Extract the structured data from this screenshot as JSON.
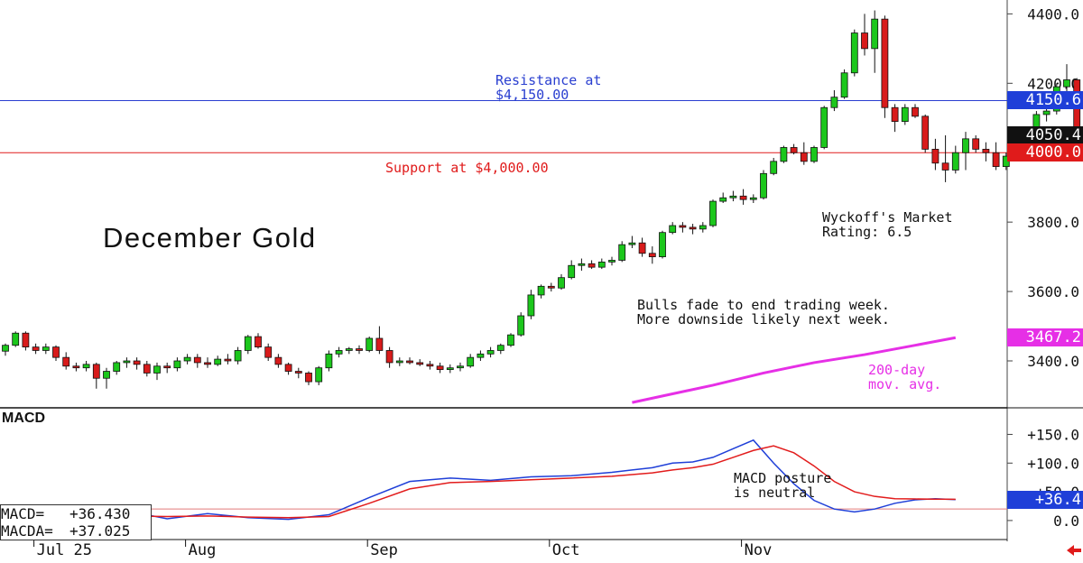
{
  "chart_data": [
    {
      "type": "candlestick",
      "title": "December Gold",
      "ylim": [
        3270,
        4440
      ],
      "y_ticks": [
        "4400.0",
        "4200.0",
        "3800.0",
        "3600.0",
        "3400.0"
      ],
      "y_tick_values": [
        4400,
        4200,
        3800,
        3600,
        3400
      ],
      "x_labels": [
        "Jul 25",
        "Aug",
        "Sep",
        "Oct",
        "Nov"
      ],
      "x_label_days": [
        3,
        18,
        36,
        54,
        73
      ],
      "price_tags": [
        {
          "label": "4150.6",
          "value": 4150.6,
          "color": "#1f3fd8"
        },
        {
          "label": "4050.4",
          "value": 4050.4,
          "color": "#111111"
        },
        {
          "label": "4000.0",
          "value": 4000.0,
          "color": "#e01b1b"
        },
        {
          "label": "3467.2",
          "value": 3467.2,
          "color": "#e62fe6"
        }
      ],
      "hlines": [
        {
          "value": 4150,
          "color": "#2a3fd0",
          "label_lines": [
            "Resistance at",
            "$4,150.00"
          ]
        },
        {
          "value": 4000,
          "color": "#e01b1b",
          "label_lines": [
            "Support at $4,000.00"
          ]
        }
      ],
      "annotations": {
        "wyckoff_lines": [
          "Wyckoff's Market",
          "Rating: 6.5"
        ],
        "comment_lines": [
          "Bulls fade to end trading week.",
          "More downside likely next week."
        ],
        "ma_label_lines": [
          "200-day",
          "mov. avg."
        ]
      },
      "series": [
        {
          "name": "200-day mov. avg.",
          "kind": "line",
          "color": "#e62fe6",
          "x": [
            62,
            70,
            75,
            80,
            85,
            90,
            94
          ],
          "y": [
            3280,
            3330,
            3365,
            3395,
            3418,
            3445,
            3467
          ]
        },
        {
          "name": "",
          "kind": "ohlc",
          "up_color": "#1cc71c",
          "down_color": "#d81b1b",
          "data": [
            [
              3428,
              3450,
              3415,
              3445
            ],
            [
              3445,
              3485,
              3440,
              3480
            ],
            [
              3480,
              3485,
              3430,
              3440
            ],
            [
              3440,
              3450,
              3420,
              3430
            ],
            [
              3430,
              3450,
              3420,
              3440
            ],
            [
              3440,
              3445,
              3400,
              3410
            ],
            [
              3410,
              3425,
              3375,
              3385
            ],
            [
              3385,
              3395,
              3370,
              3380
            ],
            [
              3380,
              3400,
              3370,
              3390
            ],
            [
              3390,
              3395,
              3320,
              3350
            ],
            [
              3350,
              3380,
              3320,
              3370
            ],
            [
              3370,
              3400,
              3360,
              3395
            ],
            [
              3395,
              3410,
              3380,
              3400
            ],
            [
              3400,
              3410,
              3375,
              3390
            ],
            [
              3390,
              3400,
              3355,
              3365
            ],
            [
              3365,
              3395,
              3345,
              3385
            ],
            [
              3385,
              3395,
              3365,
              3380
            ],
            [
              3380,
              3410,
              3370,
              3400
            ],
            [
              3400,
              3420,
              3390,
              3410
            ],
            [
              3410,
              3420,
              3380,
              3395
            ],
            [
              3395,
              3410,
              3380,
              3390
            ],
            [
              3390,
              3415,
              3385,
              3405
            ],
            [
              3405,
              3420,
              3390,
              3400
            ],
            [
              3400,
              3440,
              3390,
              3430
            ],
            [
              3430,
              3475,
              3420,
              3470
            ],
            [
              3470,
              3480,
              3435,
              3440
            ],
            [
              3440,
              3450,
              3400,
              3410
            ],
            [
              3410,
              3420,
              3380,
              3390
            ],
            [
              3390,
              3395,
              3360,
              3370
            ],
            [
              3370,
              3380,
              3350,
              3365
            ],
            [
              3365,
              3370,
              3330,
              3340
            ],
            [
              3340,
              3385,
              3330,
              3380
            ],
            [
              3380,
              3430,
              3370,
              3420
            ],
            [
              3420,
              3440,
              3410,
              3430
            ],
            [
              3430,
              3440,
              3420,
              3435
            ],
            [
              3435,
              3445,
              3420,
              3430
            ],
            [
              3430,
              3470,
              3425,
              3465
            ],
            [
              3465,
              3500,
              3420,
              3430
            ],
            [
              3430,
              3440,
              3380,
              3395
            ],
            [
              3395,
              3410,
              3385,
              3400
            ],
            [
              3400,
              3410,
              3390,
              3395
            ],
            [
              3395,
              3405,
              3385,
              3390
            ],
            [
              3390,
              3400,
              3375,
              3385
            ],
            [
              3385,
              3395,
              3365,
              3375
            ],
            [
              3375,
              3390,
              3365,
              3380
            ],
            [
              3380,
              3395,
              3370,
              3385
            ],
            [
              3385,
              3420,
              3380,
              3410
            ],
            [
              3410,
              3430,
              3400,
              3420
            ],
            [
              3420,
              3440,
              3410,
              3430
            ],
            [
              3430,
              3450,
              3420,
              3445
            ],
            [
              3445,
              3480,
              3440,
              3475
            ],
            [
              3475,
              3540,
              3470,
              3530
            ],
            [
              3530,
              3605,
              3520,
              3590
            ],
            [
              3590,
              3620,
              3580,
              3615
            ],
            [
              3615,
              3625,
              3600,
              3610
            ],
            [
              3610,
              3650,
              3605,
              3640
            ],
            [
              3640,
              3690,
              3635,
              3675
            ],
            [
              3675,
              3695,
              3660,
              3680
            ],
            [
              3680,
              3690,
              3665,
              3670
            ],
            [
              3670,
              3695,
              3665,
              3685
            ],
            [
              3685,
              3700,
              3675,
              3690
            ],
            [
              3690,
              3745,
              3685,
              3735
            ],
            [
              3735,
              3760,
              3725,
              3740
            ],
            [
              3740,
              3755,
              3700,
              3710
            ],
            [
              3710,
              3730,
              3680,
              3700
            ],
            [
              3700,
              3775,
              3695,
              3770
            ],
            [
              3770,
              3800,
              3765,
              3790
            ],
            [
              3790,
              3800,
              3770,
              3785
            ],
            [
              3785,
              3795,
              3765,
              3780
            ],
            [
              3780,
              3800,
              3770,
              3790
            ],
            [
              3790,
              3865,
              3785,
              3860
            ],
            [
              3860,
              3885,
              3855,
              3870
            ],
            [
              3870,
              3890,
              3860,
              3875
            ],
            [
              3875,
              3895,
              3850,
              3865
            ],
            [
              3865,
              3880,
              3855,
              3870
            ],
            [
              3870,
              3950,
              3865,
              3940
            ],
            [
              3940,
              3985,
              3935,
              3975
            ],
            [
              3975,
              4020,
              3970,
              4015
            ],
            [
              4015,
              4025,
              3995,
              4000
            ],
            [
              4000,
              4030,
              3965,
              3975
            ],
            [
              3975,
              4020,
              3970,
              4015
            ],
            [
              4015,
              4135,
              4010,
              4130
            ],
            [
              4130,
              4180,
              4120,
              4160
            ],
            [
              4160,
              4240,
              4155,
              4230
            ],
            [
              4230,
              4355,
              4220,
              4345
            ],
            [
              4345,
              4400,
              4280,
              4300
            ],
            [
              4300,
              4410,
              4230,
              4385
            ],
            [
              4385,
              4395,
              4100,
              4130
            ],
            [
              4130,
              4140,
              4060,
              4090
            ],
            [
              4090,
              4140,
              4080,
              4130
            ],
            [
              4130,
              4140,
              4100,
              4105
            ],
            [
              4105,
              4110,
              4000,
              4010
            ],
            [
              4010,
              4040,
              3950,
              3970
            ],
            [
              3970,
              4050,
              3915,
              3950
            ],
            [
              3950,
              4020,
              3940,
              4000
            ],
            [
              4000,
              4060,
              3950,
              4040
            ],
            [
              4040,
              4050,
              4000,
              4010
            ],
            [
              4010,
              4030,
              3975,
              4000
            ],
            [
              4000,
              4030,
              3950,
              3960
            ],
            [
              3960,
              4000,
              3950,
              3990
            ],
            [
              3990,
              4015,
              3980,
              4005
            ],
            [
              4005,
              4020,
              3985,
              4010
            ],
            [
              4010,
              4120,
              4005,
              4110
            ],
            [
              4110,
              4140,
              4090,
              4120
            ],
            [
              4120,
              4200,
              4110,
              4190
            ],
            [
              4190,
              4255,
              4160,
              4210
            ],
            [
              4210,
              4215,
              4040,
              4050.4
            ]
          ]
        }
      ]
    },
    {
      "type": "line",
      "title": "MACD",
      "ylim": [
        -30,
        190
      ],
      "y_ticks": [
        "+150.0",
        "+100.0",
        "+50.0",
        "0.0"
      ],
      "y_tick_values": [
        150,
        100,
        50,
        0
      ],
      "price_tags": [
        {
          "label": "+36.4",
          "value": 36.4,
          "color": "#1f3fd8"
        }
      ],
      "hlines": [
        {
          "value": 20,
          "color": "#e07a7a"
        }
      ],
      "readout": [
        {
          "label": "MACD=",
          "value": "+36.430"
        },
        {
          "label": "MACDA=",
          "value": "+37.025"
        }
      ],
      "annotations": {
        "note_lines": [
          "MACD posture",
          "is neutral"
        ]
      },
      "series": [
        {
          "name": "MACD",
          "color": "#1f3fd8",
          "x": [
            0,
            4,
            8,
            12,
            16,
            20,
            24,
            28,
            32,
            36,
            40,
            44,
            48,
            52,
            56,
            60,
            62,
            64,
            66,
            68,
            70,
            72,
            74,
            76,
            78,
            80,
            82,
            84,
            86,
            88,
            90,
            92,
            94
          ],
          "y": [
            15,
            10,
            7,
            17,
            3,
            12,
            5,
            2,
            10,
            40,
            68,
            74,
            70,
            76,
            78,
            84,
            88,
            92,
            100,
            102,
            110,
            125,
            140,
            100,
            64,
            35,
            20,
            15,
            20,
            30,
            36,
            38,
            36.4
          ]
        },
        {
          "name": "MACDA",
          "color": "#e21c1c",
          "x": [
            0,
            4,
            8,
            12,
            16,
            20,
            24,
            28,
            32,
            36,
            40,
            44,
            48,
            52,
            56,
            60,
            62,
            64,
            66,
            68,
            70,
            72,
            74,
            76,
            78,
            80,
            82,
            84,
            86,
            88,
            90,
            92,
            94
          ],
          "y": [
            8,
            7,
            7,
            8,
            7,
            8,
            6,
            5,
            7,
            30,
            55,
            66,
            68,
            71,
            74,
            77,
            80,
            83,
            88,
            92,
            98,
            110,
            122,
            130,
            118,
            95,
            68,
            50,
            42,
            38,
            37.5,
            37.2,
            37.025
          ]
        }
      ]
    }
  ]
}
